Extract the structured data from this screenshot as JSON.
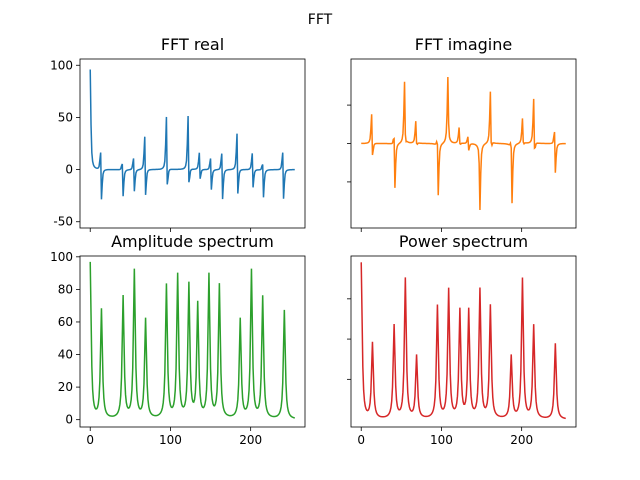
{
  "figure": {
    "suptitle": "FFT"
  },
  "chart_data": [
    {
      "type": "line",
      "title": "FFT real",
      "color": "#1f77b4",
      "xlim": [
        -12.75,
        267.75
      ],
      "ylim": [
        -56,
        106
      ],
      "xticks": [
        0,
        100,
        200
      ],
      "yticks": [
        -50,
        0,
        50,
        100
      ],
      "show_x_ticklabels": false,
      "show_y_ticklabels": true,
      "n": 256,
      "series": [
        {
          "values_note_free": true,
          "peaks": [
            {
              "x": 0,
              "value": 96
            },
            {
              "x": 13,
              "value": 36
            },
            {
              "x": 14,
              "value": -45
            },
            {
              "x": 40,
              "value": 21
            },
            {
              "x": 41,
              "value": -35
            },
            {
              "x": 54,
              "value": 25
            },
            {
              "x": 55,
              "value": -32
            },
            {
              "x": 68,
              "value": 53
            },
            {
              "x": 69,
              "value": -48
            },
            {
              "x": 95,
              "value": 71
            },
            {
              "x": 96,
              "value": -46
            },
            {
              "x": 122,
              "value": 71
            },
            {
              "x": 123,
              "value": -44
            },
            {
              "x": 136,
              "value": 25
            },
            {
              "x": 137,
              "value": -20
            },
            {
              "x": 150,
              "value": 24
            },
            {
              "x": 151,
              "value": -30
            },
            {
              "x": 164,
              "value": 35
            },
            {
              "x": 165,
              "value": -44
            },
            {
              "x": 183,
              "value": 56
            },
            {
              "x": 184,
              "value": -48
            },
            {
              "x": 202,
              "value": 29
            },
            {
              "x": 203,
              "value": -30
            },
            {
              "x": 215,
              "value": 21
            },
            {
              "x": 216,
              "value": -36
            },
            {
              "x": 240,
              "value": 36
            },
            {
              "x": 241,
              "value": -44
            }
          ],
          "baseline": [
            {
              "x": 100,
              "value": 3
            },
            {
              "x": 150,
              "value": 3
            },
            {
              "x": 255,
              "value": 0
            }
          ]
        }
      ]
    },
    {
      "type": "line",
      "title": "FFT imagine",
      "color": "#ff7f0e",
      "xlim": [
        -12.75,
        267.75
      ],
      "ylim": [
        -55,
        55
      ],
      "xticks": [
        0,
        100,
        200
      ],
      "yticks": [
        -25,
        0,
        25
      ],
      "show_x_ticklabels": false,
      "show_y_ticklabels": false,
      "n": 256,
      "series": [
        {
          "peaks": [
            {
              "x": 13,
              "value": 28
            },
            {
              "x": 14,
              "value": -20
            },
            {
              "x": 41,
              "value": 20
            },
            {
              "x": 42,
              "value": -38
            },
            {
              "x": 54,
              "value": 47
            },
            {
              "x": 55,
              "value": -15
            },
            {
              "x": 68,
              "value": 18
            },
            {
              "x": 69,
              "value": -8
            },
            {
              "x": 95,
              "value": 18
            },
            {
              "x": 96,
              "value": -42
            },
            {
              "x": 108,
              "value": 47
            },
            {
              "x": 109,
              "value": -8
            },
            {
              "x": 122,
              "value": 13
            },
            {
              "x": 123,
              "value": -6
            },
            {
              "x": 133,
              "value": 8
            },
            {
              "x": 134,
              "value": -8
            },
            {
              "x": 147,
              "value": 8
            },
            {
              "x": 148,
              "value": -47
            },
            {
              "x": 161,
              "value": 42
            },
            {
              "x": 162,
              "value": -18
            },
            {
              "x": 187,
              "value": 18
            },
            {
              "x": 188,
              "value": -47
            },
            {
              "x": 201,
              "value": 20
            },
            {
              "x": 202,
              "value": -8
            },
            {
              "x": 215,
              "value": 38
            },
            {
              "x": 216,
              "value": -20
            },
            {
              "x": 241,
              "value": 20
            },
            {
              "x": 242,
              "value": -28
            }
          ],
          "baseline": [
            {
              "x": 0,
              "value": 0
            },
            {
              "x": 255,
              "value": 0
            }
          ]
        }
      ]
    },
    {
      "type": "line",
      "title": "Amplitude spectrum",
      "color": "#2ca02c",
      "xlim": [
        -12.75,
        267.75
      ],
      "ylim": [
        -4.5,
        100.5
      ],
      "xticks": [
        0,
        100,
        200
      ],
      "yticks": [
        0,
        20,
        40,
        60,
        80,
        100
      ],
      "show_x_ticklabels": true,
      "show_y_ticklabels": true,
      "n": 256,
      "series": [
        {
          "peaks": [
            {
              "x": 0,
              "value": 96
            },
            {
              "x": 14,
              "value": 67
            },
            {
              "x": 41,
              "value": 75
            },
            {
              "x": 55,
              "value": 91
            },
            {
              "x": 69,
              "value": 61
            },
            {
              "x": 95,
              "value": 82
            },
            {
              "x": 109,
              "value": 88
            },
            {
              "x": 123,
              "value": 82
            },
            {
              "x": 134,
              "value": 70
            },
            {
              "x": 148,
              "value": 88
            },
            {
              "x": 161,
              "value": 82
            },
            {
              "x": 187,
              "value": 61
            },
            {
              "x": 201,
              "value": 91
            },
            {
              "x": 215,
              "value": 75
            },
            {
              "x": 242,
              "value": 67
            }
          ]
        }
      ]
    },
    {
      "type": "line",
      "title": "Power spectrum",
      "color": "#d62728",
      "xlim": [
        -12.75,
        267.75
      ],
      "ylim": [
        -4.6,
        101.6
      ],
      "xticks": [
        0,
        100,
        200
      ],
      "yticks": [
        25,
        50,
        75
      ],
      "show_x_ticklabels": true,
      "show_y_ticklabels": false,
      "n": 256,
      "series": [
        {
          "peaks": [
            {
              "x": 0,
              "value": 97
            },
            {
              "x": 14,
              "value": 47
            },
            {
              "x": 41,
              "value": 58
            },
            {
              "x": 55,
              "value": 87
            },
            {
              "x": 69,
              "value": 39
            },
            {
              "x": 95,
              "value": 70
            },
            {
              "x": 109,
              "value": 80
            },
            {
              "x": 123,
              "value": 67
            },
            {
              "x": 134,
              "value": 67
            },
            {
              "x": 148,
              "value": 80
            },
            {
              "x": 161,
              "value": 70
            },
            {
              "x": 187,
              "value": 39
            },
            {
              "x": 201,
              "value": 87
            },
            {
              "x": 215,
              "value": 58
            },
            {
              "x": 242,
              "value": 47
            }
          ]
        }
      ]
    }
  ]
}
